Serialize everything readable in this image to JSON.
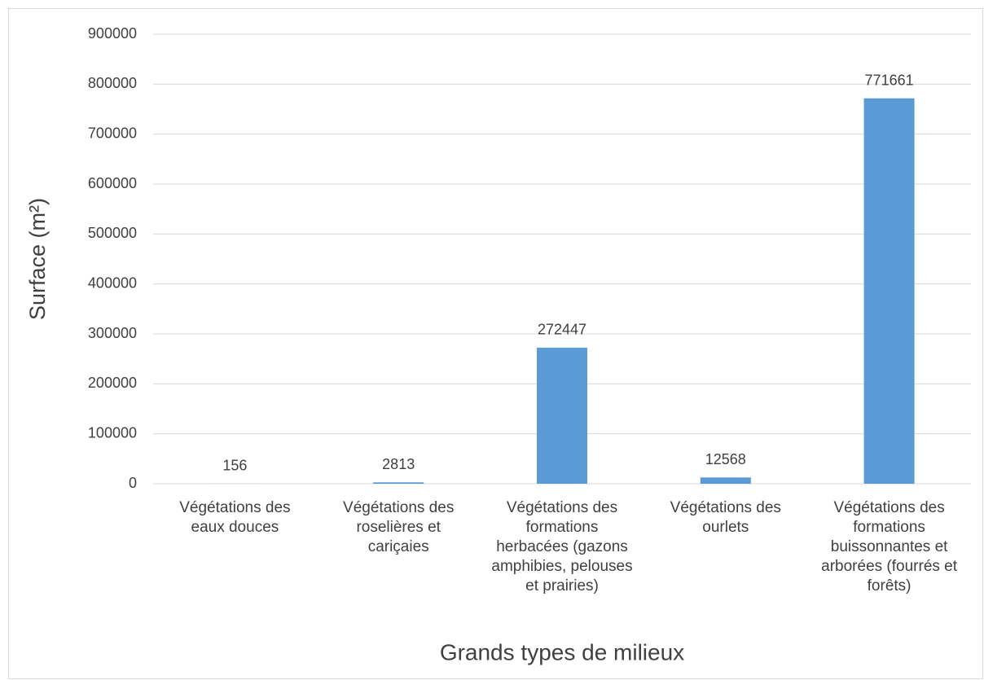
{
  "chart_data": {
    "type": "bar",
    "categories": [
      "Végétations des eaux douces",
      "Végétations des roselières et cariçaies",
      "Végétations des formations herbacées (gazons amphibies, pelouses et prairies)",
      "Végétations des ourlets",
      "Végétations des formations buissonnantes et arborées (fourrés et forêts)"
    ],
    "values": [
      156,
      2813,
      272447,
      12568,
      771661
    ],
    "color": "#5b9bd5",
    "ylim": [
      0,
      900000
    ],
    "yticks": [
      0,
      100000,
      200000,
      300000,
      400000,
      500000,
      600000,
      700000,
      800000,
      900000
    ],
    "grid": true,
    "y_label": "Surface  (m²)",
    "x_label": "Grands types de milieux"
  }
}
